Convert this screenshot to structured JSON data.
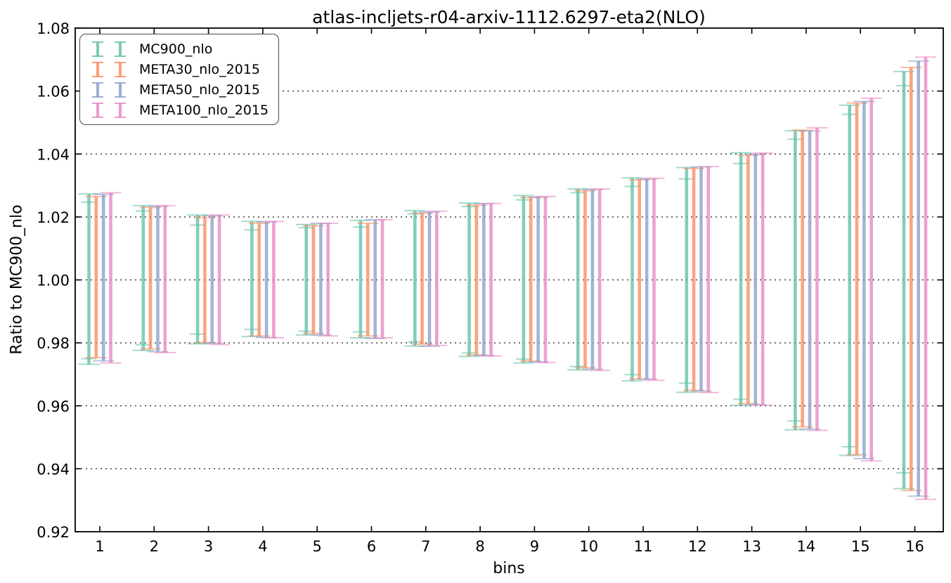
{
  "title": "atlas-incljets-r04-arxiv-1112.6297-eta2(NLO)",
  "axes": {
    "xlabel": "bins",
    "ylabel": "Ratio to MC900_nlo",
    "xticks": [
      1,
      2,
      3,
      4,
      5,
      6,
      7,
      8,
      9,
      10,
      11,
      12,
      13,
      14,
      15,
      16
    ],
    "yticks": [
      "0.92",
      "0.94",
      "0.96",
      "0.98",
      "1.00",
      "1.02",
      "1.04",
      "1.06",
      "1.08"
    ]
  },
  "chart_data": {
    "type": "errorbar",
    "title": "atlas-incljets-r04-arxiv-1112.6297-eta2(NLO)",
    "xlabel": "bins",
    "ylabel": "Ratio to MC900_nlo",
    "xlim": [
      0.55,
      16.55
    ],
    "ylim": [
      0.92,
      1.08
    ],
    "grid": "horizontal-dotted-black",
    "legend_position": "upper-left",
    "x": [
      1,
      2,
      3,
      4,
      5,
      6,
      7,
      8,
      9,
      10,
      11,
      12,
      13,
      14,
      15,
      16
    ],
    "series": [
      {
        "name": "MC900_nlo",
        "color": "#66c2a5",
        "hi": [
          1.0273,
          1.0236,
          1.0206,
          1.0186,
          1.0176,
          1.0189,
          1.022,
          1.0244,
          1.0268,
          1.0289,
          1.0324,
          1.0357,
          1.0404,
          1.0474,
          1.0555,
          1.0662
        ],
        "lo": [
          0.9732,
          0.9776,
          0.9797,
          0.982,
          0.9825,
          0.9816,
          0.979,
          0.9757,
          0.9736,
          0.9714,
          0.9679,
          0.9643,
          0.9601,
          0.9524,
          0.9442,
          0.9337
        ],
        "inner_hi": [
          1.0247,
          1.0219,
          1.0174,
          1.0159,
          1.0166,
          1.0168,
          1.021,
          1.0233,
          1.0254,
          1.0277,
          1.0297,
          1.0321,
          1.037,
          1.0447,
          1.0526,
          1.0617
        ],
        "inner_lo": [
          0.975,
          0.9794,
          0.9828,
          0.9843,
          0.9837,
          0.9835,
          0.9803,
          0.9768,
          0.9748,
          0.9725,
          0.9699,
          0.9672,
          0.9621,
          0.9552,
          0.947,
          0.9387
        ]
      },
      {
        "name": "META30_nlo_2015",
        "color": "#fc8d62",
        "hi": [
          1.0265,
          1.023,
          1.0198,
          1.018,
          1.0172,
          1.018,
          1.0212,
          1.0237,
          1.0262,
          1.0283,
          1.0318,
          1.0354,
          1.0396,
          1.0476,
          1.0562,
          1.0675
        ],
        "lo": [
          0.9753,
          0.9781,
          0.9801,
          0.9822,
          0.983,
          0.9822,
          0.9796,
          0.9762,
          0.9742,
          0.9721,
          0.9685,
          0.9649,
          0.9607,
          0.9533,
          0.9445,
          0.9331
        ]
      },
      {
        "name": "META50_nlo_2015",
        "color": "#8da0cb",
        "hi": [
          1.0272,
          1.0234,
          1.0204,
          1.0184,
          1.018,
          1.0191,
          1.0216,
          1.0242,
          1.0263,
          1.0287,
          1.0321,
          1.0359,
          1.0399,
          1.0473,
          1.0567,
          1.0695
        ],
        "lo": [
          0.9743,
          0.9772,
          0.9799,
          0.9817,
          0.9825,
          0.9814,
          0.9789,
          0.976,
          0.974,
          0.9716,
          0.9685,
          0.9647,
          0.9604,
          0.9526,
          0.9432,
          0.9313
        ]
      },
      {
        "name": "META100_nlo_2015",
        "color": "#e78ac3",
        "hi": [
          1.0277,
          1.0236,
          1.0206,
          1.0186,
          1.018,
          1.0191,
          1.0218,
          1.0243,
          1.0265,
          1.0289,
          1.0323,
          1.036,
          1.0403,
          1.0483,
          1.0577,
          1.0708
        ],
        "lo": [
          0.9736,
          0.9769,
          0.9795,
          0.9816,
          0.9822,
          0.9816,
          0.9792,
          0.9758,
          0.9737,
          0.9712,
          0.9681,
          0.9642,
          0.9602,
          0.9522,
          0.9425,
          0.9303
        ]
      }
    ]
  }
}
